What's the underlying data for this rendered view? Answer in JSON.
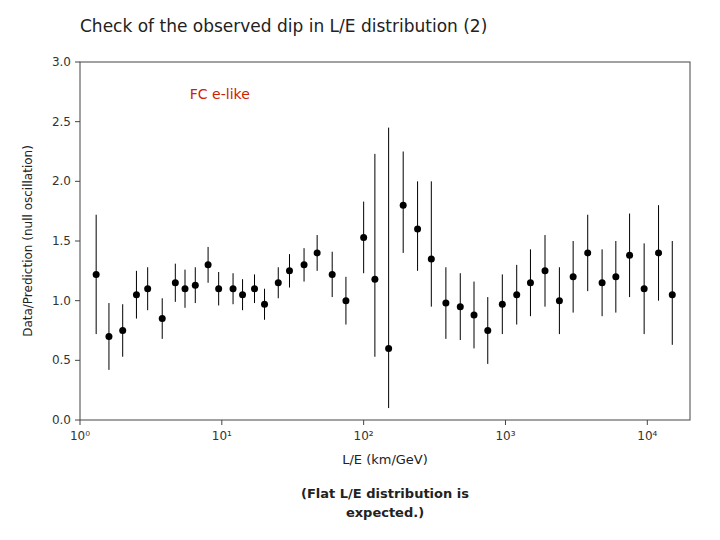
{
  "chart_data": {
    "type": "scatter",
    "title": "Check of the observed dip in L/E distribution (2)",
    "subtitle": "(Flat L/E distribution is\nexpected.)",
    "x_label": "L/E (km/GeV)",
    "y_label": "Data/Prediction (null oscillation)",
    "log": "x",
    "grid": false,
    "color": "#000000",
    "marker": "circle",
    "xlim": [
      1,
      20000
    ],
    "ylim": [
      0,
      3
    ],
    "xticks": [
      {
        "value": 1,
        "label": "10⁰"
      },
      {
        "value": 10,
        "label": "10¹"
      },
      {
        "value": 100,
        "label": "10²"
      },
      {
        "value": 1000,
        "label": "10³"
      },
      {
        "value": 10000,
        "label": "10⁴"
      }
    ],
    "yticks": [
      {
        "value": 0,
        "label": "0.0"
      },
      0.5,
      {
        "value": 1,
        "label": "1.0"
      },
      1.5,
      {
        "value": 2,
        "label": "2.0"
      },
      2.5,
      {
        "value": 3,
        "label": "3.0"
      }
    ],
    "annotations": [
      {
        "text": "FC e-like",
        "color": "#CC2200"
      }
    ],
    "x": [
      1.3,
      1.6,
      2.0,
      2.5,
      3.0,
      3.8,
      4.7,
      5.5,
      6.5,
      8.0,
      9.5,
      12.0,
      14.0,
      17.0,
      20.0,
      25.0,
      30.0,
      38.0,
      47.0,
      60.0,
      75.0,
      100.0,
      120.0,
      150.0,
      190.0,
      240.0,
      300.0,
      380.0,
      480.0,
      600.0,
      750.0,
      950.0,
      1200.0,
      1500.0,
      1900.0,
      2400.0,
      3000.0,
      3800.0,
      4800.0,
      6000.0,
      7500.0,
      9500.0,
      12000.0,
      15000.0
    ],
    "values": [
      1.22,
      0.7,
      0.75,
      1.05,
      1.1,
      0.85,
      1.15,
      1.1,
      1.13,
      1.3,
      1.1,
      1.1,
      1.05,
      1.1,
      0.97,
      1.15,
      1.25,
      1.3,
      1.4,
      1.22,
      1.0,
      1.53,
      1.18,
      0.6,
      1.8,
      1.6,
      1.35,
      0.98,
      0.95,
      0.88,
      0.75,
      0.97,
      1.05,
      1.15,
      1.25,
      1.0,
      1.2,
      1.4,
      1.15,
      1.2,
      1.38,
      1.1,
      1.4,
      1.05
    ],
    "yerr_lo": [
      0.5,
      0.28,
      0.22,
      0.2,
      0.18,
      0.17,
      0.16,
      0.16,
      0.15,
      0.15,
      0.14,
      0.13,
      0.13,
      0.12,
      0.13,
      0.13,
      0.14,
      0.14,
      0.15,
      0.19,
      0.2,
      0.3,
      0.65,
      0.5,
      0.4,
      0.35,
      0.4,
      0.3,
      0.28,
      0.28,
      0.28,
      0.25,
      0.25,
      0.28,
      0.3,
      0.28,
      0.3,
      0.32,
      0.28,
      0.3,
      0.35,
      0.38,
      0.4,
      0.42
    ],
    "yerr_hi": [
      0.5,
      0.28,
      0.22,
      0.2,
      0.18,
      0.17,
      0.16,
      0.16,
      0.15,
      0.15,
      0.14,
      0.13,
      0.13,
      0.12,
      0.13,
      0.13,
      0.14,
      0.14,
      0.15,
      0.19,
      0.2,
      0.3,
      1.05,
      1.85,
      0.45,
      0.4,
      0.65,
      0.3,
      0.28,
      0.28,
      0.28,
      0.25,
      0.25,
      0.28,
      0.3,
      0.28,
      0.3,
      0.32,
      0.28,
      0.3,
      0.35,
      0.38,
      0.4,
      0.45
    ]
  }
}
